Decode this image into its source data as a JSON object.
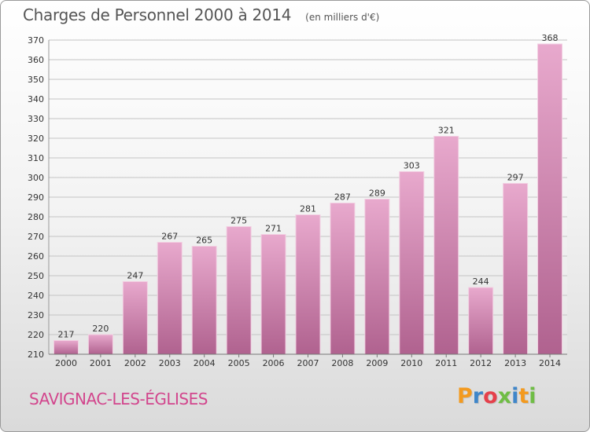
{
  "header": {
    "title": "Charges de Personnel 2000 à 2014",
    "subtitle": "(en milliers d'€)"
  },
  "footer": {
    "commune": "SAVIGNAC-LES-ÉGLISES",
    "logo_text": "Proxiti",
    "logo_colors": [
      "#f39a1f",
      "#3f86c9",
      "#e5404b",
      "#6fbd45",
      "#3f86c9",
      "#f39a1f",
      "#6fbd45"
    ]
  },
  "colors": {
    "bar_light": "#e8a9cd",
    "bar_dark": "#b0628f",
    "grid": "#c4c4c4",
    "axis_text": "#333333"
  },
  "chart_data": {
    "type": "bar",
    "categories": [
      "2000",
      "2001",
      "2002",
      "2003",
      "2004",
      "2005",
      "2006",
      "2007",
      "2008",
      "2009",
      "2010",
      "2011",
      "2012",
      "2013",
      "2014"
    ],
    "values": [
      217,
      220,
      247,
      267,
      265,
      275,
      271,
      281,
      287,
      289,
      303,
      321,
      244,
      297,
      368
    ],
    "ylim": [
      210,
      370
    ],
    "yticks": [
      210,
      220,
      230,
      240,
      250,
      260,
      270,
      280,
      290,
      300,
      310,
      320,
      330,
      340,
      350,
      360,
      370
    ],
    "grid": true,
    "data_labels": true
  }
}
